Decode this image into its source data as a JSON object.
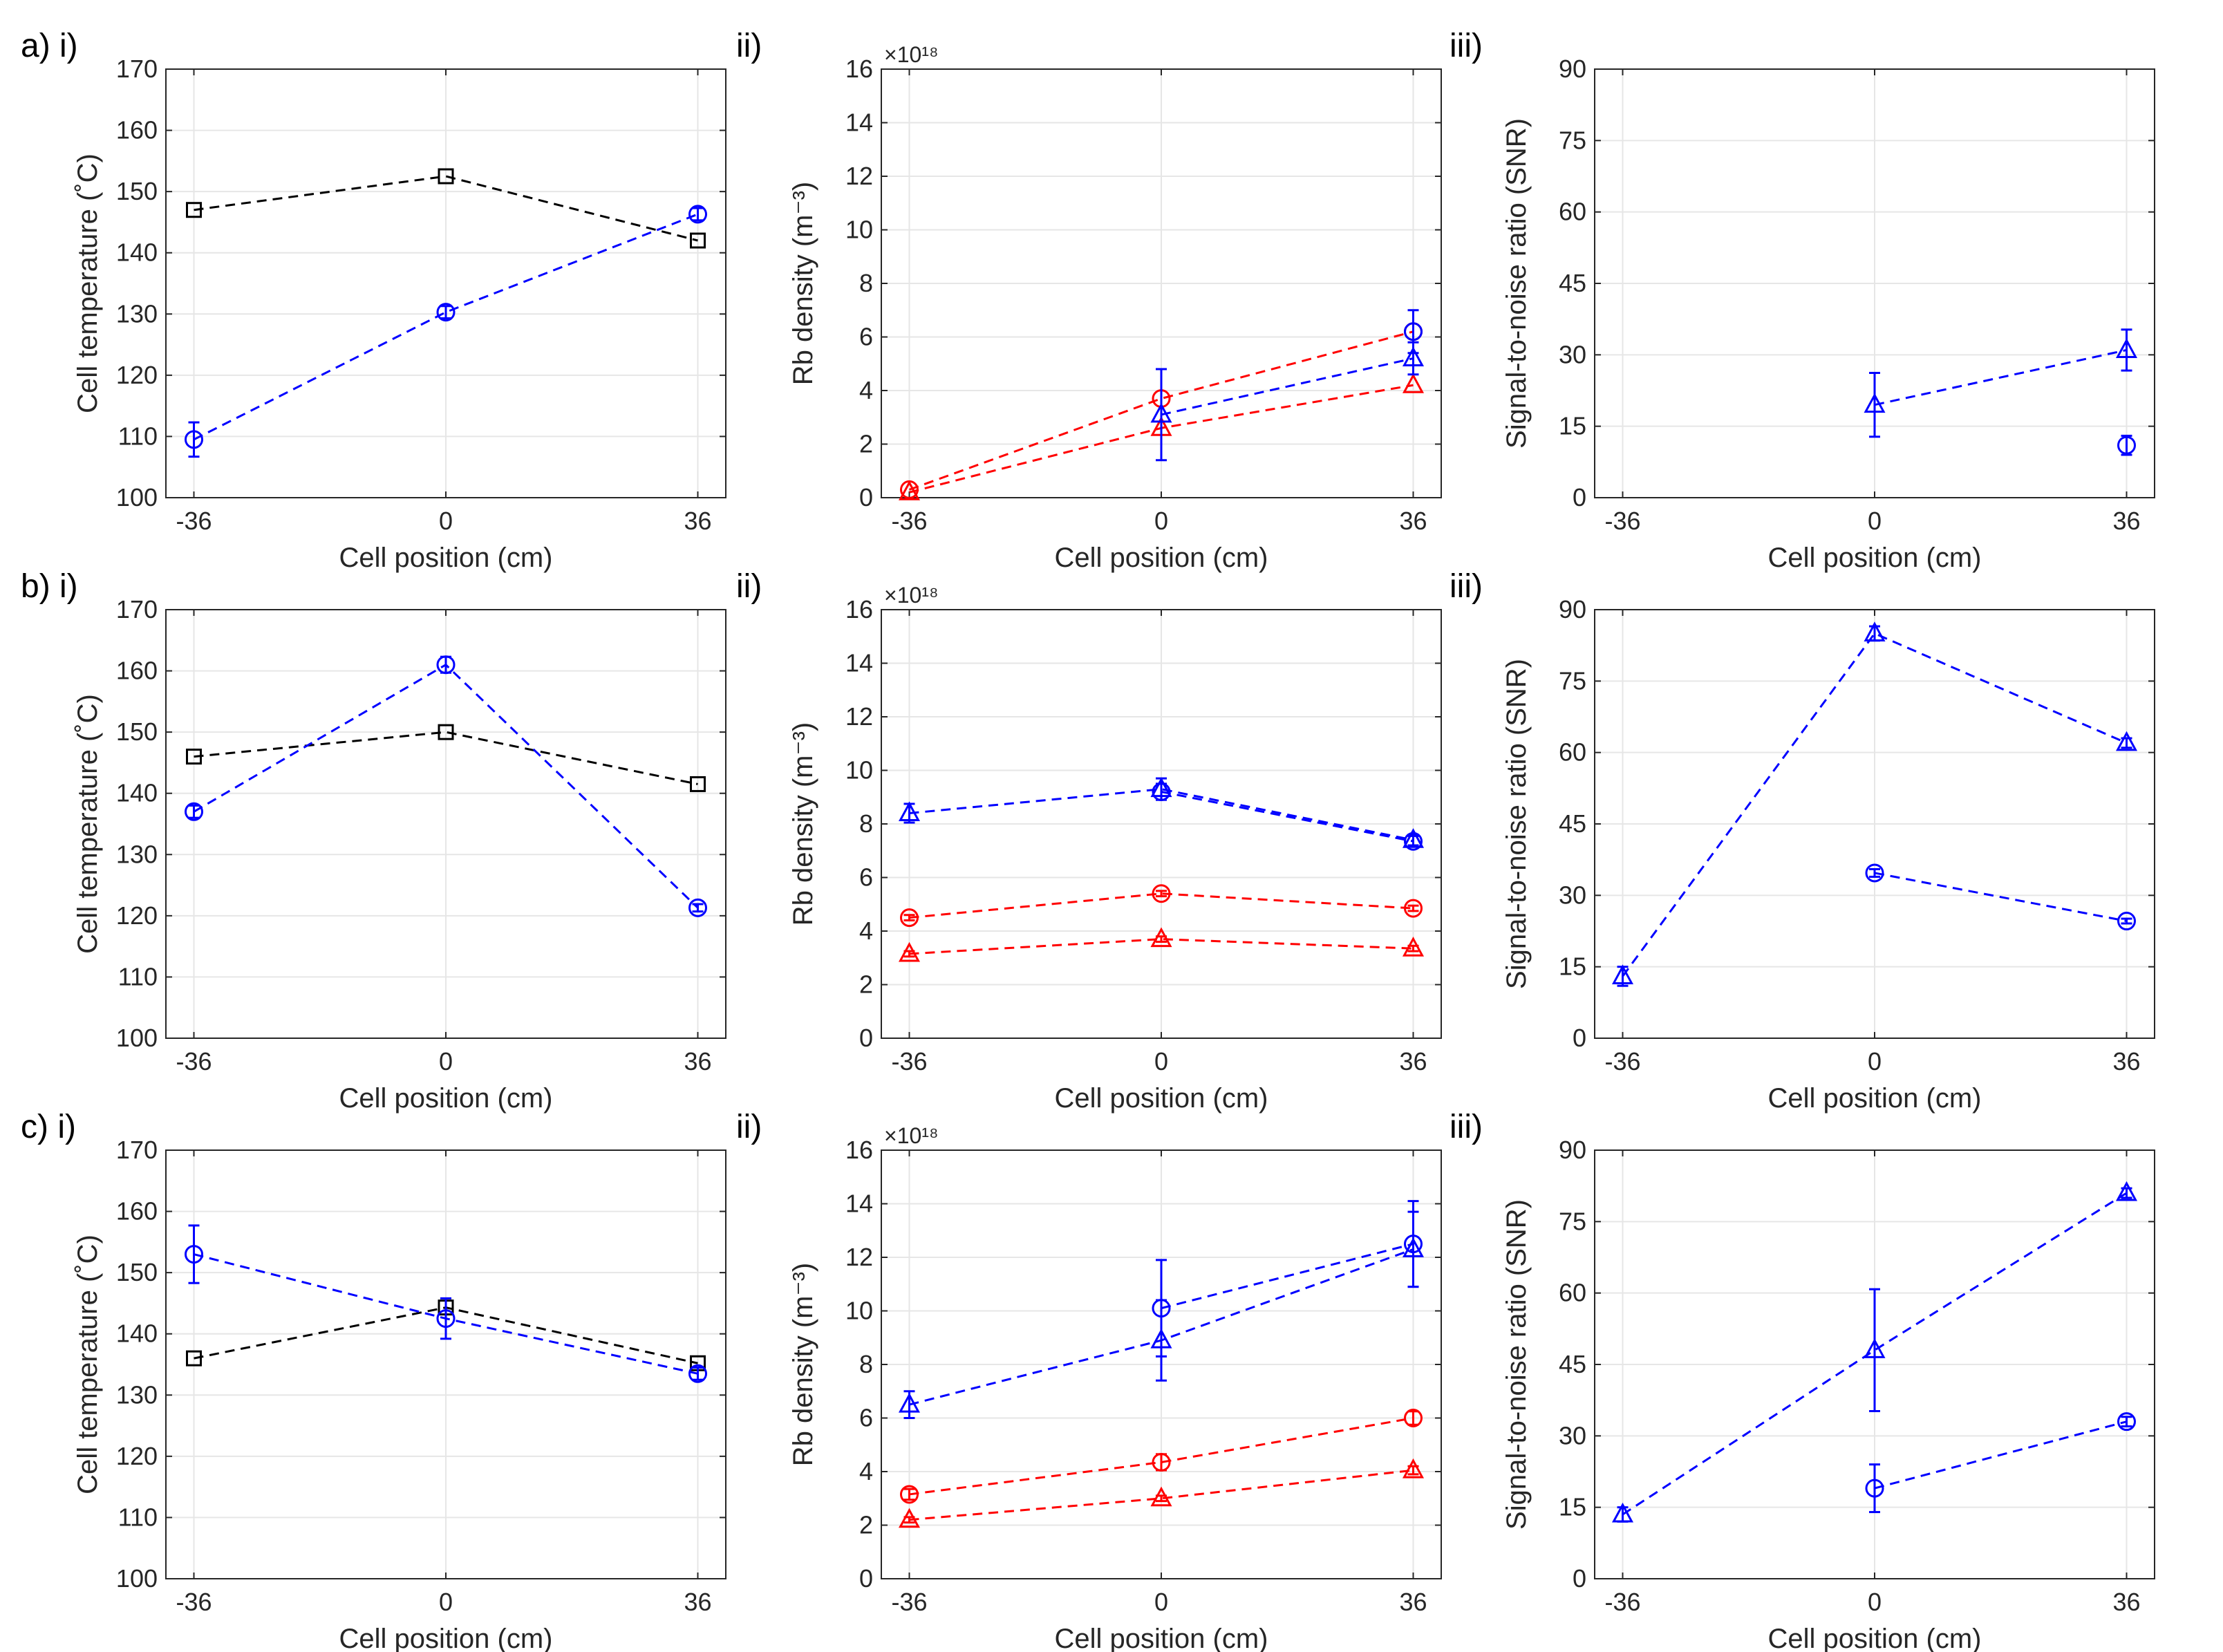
{
  "colors": {
    "blue": "#0000ff",
    "red": "#ff0000",
    "black": "#000000",
    "axis": "#262626",
    "grid": "#e6e6e6"
  },
  "chart_data": [
    {
      "id": "a-i",
      "panel_label": "a) i)",
      "type": "line",
      "xlabel": "Cell position (cm)",
      "ylabel": "Cell temperature (˚C)",
      "multiplier": "",
      "xlim": [
        -40,
        40
      ],
      "ylim": [
        100,
        170
      ],
      "xticks": [
        -36,
        0,
        36
      ],
      "xtick_labels": [
        "-36",
        "0",
        "36"
      ],
      "yticks": [
        100,
        110,
        120,
        130,
        140,
        150,
        160,
        170
      ],
      "ytick_labels": [
        "100",
        "110",
        "120",
        "130",
        "140",
        "150",
        "160",
        "170"
      ],
      "series": [
        {
          "name": "black squares",
          "color": "#000000",
          "marker": "square",
          "x": [
            -36,
            0,
            36
          ],
          "y": [
            147,
            152.5,
            142
          ],
          "err": [
            0,
            0,
            0
          ]
        },
        {
          "name": "blue circles",
          "color": "#0000ff",
          "marker": "circle",
          "x": [
            -36,
            0,
            36
          ],
          "y": [
            109.5,
            130.3,
            146.3
          ],
          "err": [
            2.8,
            1,
            1
          ]
        }
      ]
    },
    {
      "id": "a-ii",
      "panel_label": "ii)",
      "type": "line",
      "xlabel": "Cell position (cm)",
      "ylabel": "Rb density (m⁻³)",
      "multiplier": "×10¹⁸",
      "xlim": [
        -40,
        40
      ],
      "ylim": [
        0,
        16
      ],
      "xticks": [
        -36,
        0,
        36
      ],
      "xtick_labels": [
        "-36",
        "0",
        "36"
      ],
      "yticks": [
        0,
        2,
        4,
        6,
        8,
        10,
        12,
        14,
        16
      ],
      "ytick_labels": [
        "0",
        "2",
        "4",
        "6",
        "8",
        "10",
        "12",
        "14",
        "16"
      ],
      "series": [
        {
          "name": "red circles",
          "color": "#ff0000",
          "marker": "circle",
          "x": [
            -36,
            0,
            36
          ],
          "y": [
            0.3,
            3.7,
            6.2
          ],
          "err": [
            0,
            0,
            0
          ]
        },
        {
          "name": "red triangles",
          "color": "#ff0000",
          "marker": "triangle",
          "x": [
            -36,
            0,
            36
          ],
          "y": [
            0.2,
            2.6,
            4.2
          ],
          "err": [
            0,
            0,
            0
          ]
        },
        {
          "name": "blue triangles",
          "color": "#0000ff",
          "marker": "triangle",
          "x": [
            0,
            36
          ],
          "y": [
            3.1,
            5.2
          ],
          "err": [
            1.7,
            0.6
          ]
        },
        {
          "name": "blue circles",
          "color": "#0000ff",
          "marker": "circle",
          "x": [
            36
          ],
          "y": [
            6.2
          ],
          "err": [
            0.8
          ]
        }
      ]
    },
    {
      "id": "a-iii",
      "panel_label": "iii)",
      "type": "line",
      "xlabel": "Cell position (cm)",
      "ylabel": "Signal-to-noise ratio (SNR)",
      "multiplier": "",
      "xlim": [
        -40,
        40
      ],
      "ylim": [
        0,
        90
      ],
      "xticks": [
        -36,
        0,
        36
      ],
      "xtick_labels": [
        "-36",
        "0",
        "36"
      ],
      "yticks": [
        0,
        15,
        30,
        45,
        60,
        75,
        90
      ],
      "ytick_labels": [
        "0",
        "15",
        "30",
        "45",
        "60",
        "75",
        "90"
      ],
      "series": [
        {
          "name": "blue triangles",
          "color": "#0000ff",
          "marker": "triangle",
          "x": [
            0,
            36
          ],
          "y": [
            19.5,
            31
          ],
          "err": [
            6.7,
            4.3
          ]
        },
        {
          "name": "blue circles",
          "color": "#0000ff",
          "marker": "circle",
          "x": [
            36
          ],
          "y": [
            11
          ],
          "err": [
            2
          ]
        }
      ]
    },
    {
      "id": "b-i",
      "panel_label": "b) i)",
      "type": "line",
      "xlabel": "Cell position (cm)",
      "ylabel": "Cell temperature (˚C)",
      "multiplier": "",
      "xlim": [
        -40,
        40
      ],
      "ylim": [
        100,
        170
      ],
      "xticks": [
        -36,
        0,
        36
      ],
      "xtick_labels": [
        "-36",
        "0",
        "36"
      ],
      "yticks": [
        100,
        110,
        120,
        130,
        140,
        150,
        160,
        170
      ],
      "ytick_labels": [
        "100",
        "110",
        "120",
        "130",
        "140",
        "150",
        "160",
        "170"
      ],
      "series": [
        {
          "name": "black squares",
          "color": "#000000",
          "marker": "square",
          "x": [
            -36,
            0,
            36
          ],
          "y": [
            146,
            150,
            141.5
          ],
          "err": [
            0,
            0,
            0
          ]
        },
        {
          "name": "blue circles",
          "color": "#0000ff",
          "marker": "circle",
          "x": [
            -36,
            0,
            36
          ],
          "y": [
            137,
            161,
            121.3
          ],
          "err": [
            1,
            1.3,
            0.6
          ]
        }
      ]
    },
    {
      "id": "b-ii",
      "panel_label": "ii)",
      "type": "line",
      "xlabel": "Cell position (cm)",
      "ylabel": "Rb density (m⁻³)",
      "multiplier": "×10¹⁸",
      "xlim": [
        -40,
        40
      ],
      "ylim": [
        0,
        16
      ],
      "xticks": [
        -36,
        0,
        36
      ],
      "xtick_labels": [
        "-36",
        "0",
        "36"
      ],
      "yticks": [
        0,
        2,
        4,
        6,
        8,
        10,
        12,
        14,
        16
      ],
      "ytick_labels": [
        "0",
        "2",
        "4",
        "6",
        "8",
        "10",
        "12",
        "14",
        "16"
      ],
      "series": [
        {
          "name": "blue triangles",
          "color": "#0000ff",
          "marker": "triangle",
          "x": [
            -36,
            0,
            36
          ],
          "y": [
            8.4,
            9.3,
            7.4
          ],
          "err": [
            0.35,
            0.4,
            0.2
          ]
        },
        {
          "name": "blue circles",
          "color": "#0000ff",
          "marker": "circle",
          "x": [
            0,
            36
          ],
          "y": [
            9.2,
            7.35
          ],
          "err": [
            0.3,
            0.2
          ]
        },
        {
          "name": "red circles",
          "color": "#ff0000",
          "marker": "circle",
          "x": [
            -36,
            0,
            36
          ],
          "y": [
            4.5,
            5.4,
            4.85
          ],
          "err": [
            0.1,
            0.1,
            0.1
          ]
        },
        {
          "name": "red triangles",
          "color": "#ff0000",
          "marker": "triangle",
          "x": [
            -36,
            0,
            36
          ],
          "y": [
            3.15,
            3.7,
            3.35
          ],
          "err": [
            0.1,
            0.1,
            0.1
          ]
        }
      ]
    },
    {
      "id": "b-iii",
      "panel_label": "iii)",
      "type": "line",
      "xlabel": "Cell position (cm)",
      "ylabel": "Signal-to-noise ratio (SNR)",
      "multiplier": "",
      "xlim": [
        -40,
        40
      ],
      "ylim": [
        0,
        90
      ],
      "xticks": [
        -36,
        0,
        36
      ],
      "xtick_labels": [
        "-36",
        "0",
        "36"
      ],
      "yticks": [
        0,
        15,
        30,
        45,
        60,
        75,
        90
      ],
      "ytick_labels": [
        "0",
        "15",
        "30",
        "45",
        "60",
        "75",
        "90"
      ],
      "series": [
        {
          "name": "blue triangles",
          "color": "#0000ff",
          "marker": "triangle",
          "x": [
            -36,
            0,
            36
          ],
          "y": [
            13,
            85,
            62
          ],
          "err": [
            2,
            1.5,
            1
          ]
        },
        {
          "name": "blue circles",
          "color": "#0000ff",
          "marker": "circle",
          "x": [
            0,
            36
          ],
          "y": [
            34.7,
            24.6
          ],
          "err": [
            0.8,
            0.5
          ]
        }
      ]
    },
    {
      "id": "c-i",
      "panel_label": "c) i)",
      "type": "line",
      "xlabel": "Cell position (cm)",
      "ylabel": "Cell temperature (˚C)",
      "multiplier": "",
      "xlim": [
        -40,
        40
      ],
      "ylim": [
        100,
        170
      ],
      "xticks": [
        -36,
        0,
        36
      ],
      "xtick_labels": [
        "-36",
        "0",
        "36"
      ],
      "yticks": [
        100,
        110,
        120,
        130,
        140,
        150,
        160,
        170
      ],
      "ytick_labels": [
        "100",
        "110",
        "120",
        "130",
        "140",
        "150",
        "160",
        "170"
      ],
      "series": [
        {
          "name": "black squares",
          "color": "#000000",
          "marker": "square",
          "x": [
            -36,
            0,
            36
          ],
          "y": [
            136,
            144.3,
            135.2
          ],
          "err": [
            0,
            0,
            0
          ]
        },
        {
          "name": "blue circles",
          "color": "#0000ff",
          "marker": "circle",
          "x": [
            -36,
            0,
            36
          ],
          "y": [
            153,
            142.5,
            133.5
          ],
          "err": [
            4.7,
            3.3,
            1
          ]
        }
      ]
    },
    {
      "id": "c-ii",
      "panel_label": "ii)",
      "type": "line",
      "xlabel": "Cell position (cm)",
      "ylabel": "Rb density (m⁻³)",
      "multiplier": "×10¹⁸",
      "xlim": [
        -40,
        40
      ],
      "ylim": [
        0,
        16
      ],
      "xticks": [
        -36,
        0,
        36
      ],
      "xtick_labels": [
        "-36",
        "0",
        "36"
      ],
      "yticks": [
        0,
        2,
        4,
        6,
        8,
        10,
        12,
        14,
        16
      ],
      "ytick_labels": [
        "0",
        "2",
        "4",
        "6",
        "8",
        "10",
        "12",
        "14",
        "16"
      ],
      "series": [
        {
          "name": "blue triangles",
          "color": "#0000ff",
          "marker": "triangle",
          "x": [
            -36,
            0,
            36
          ],
          "y": [
            6.5,
            8.9,
            12.3
          ],
          "err": [
            0.5,
            1.5,
            1.4
          ]
        },
        {
          "name": "blue circles",
          "color": "#0000ff",
          "marker": "circle",
          "x": [
            0,
            36
          ],
          "y": [
            10.1,
            12.5
          ],
          "err": [
            1.8,
            1.6
          ]
        },
        {
          "name": "red circles",
          "color": "#ff0000",
          "marker": "circle",
          "x": [
            -36,
            0,
            36
          ],
          "y": [
            3.15,
            4.35,
            6
          ],
          "err": [
            0.2,
            0.3,
            0.25
          ]
        },
        {
          "name": "red triangles",
          "color": "#ff0000",
          "marker": "triangle",
          "x": [
            -36,
            0,
            36
          ],
          "y": [
            2.2,
            3,
            4.05
          ],
          "err": [
            0.1,
            0.1,
            0.15
          ]
        }
      ]
    },
    {
      "id": "c-iii",
      "panel_label": "iii)",
      "type": "line",
      "xlabel": "Cell position (cm)",
      "ylabel": "Signal-to-noise ratio (SNR)",
      "multiplier": "",
      "xlim": [
        -40,
        40
      ],
      "ylim": [
        0,
        90
      ],
      "xticks": [
        -36,
        0,
        36
      ],
      "xtick_labels": [
        "-36",
        "0",
        "36"
      ],
      "yticks": [
        0,
        15,
        30,
        45,
        60,
        75,
        90
      ],
      "ytick_labels": [
        "0",
        "15",
        "30",
        "45",
        "60",
        "75",
        "90"
      ],
      "series": [
        {
          "name": "blue triangles",
          "color": "#0000ff",
          "marker": "triangle",
          "x": [
            -36,
            0,
            36
          ],
          "y": [
            13.5,
            48,
            81
          ],
          "err": [
            1.5,
            12.8,
            1
          ]
        },
        {
          "name": "blue circles",
          "color": "#0000ff",
          "marker": "circle",
          "x": [
            0,
            36
          ],
          "y": [
            19,
            33
          ],
          "err": [
            5,
            1
          ]
        }
      ]
    }
  ]
}
